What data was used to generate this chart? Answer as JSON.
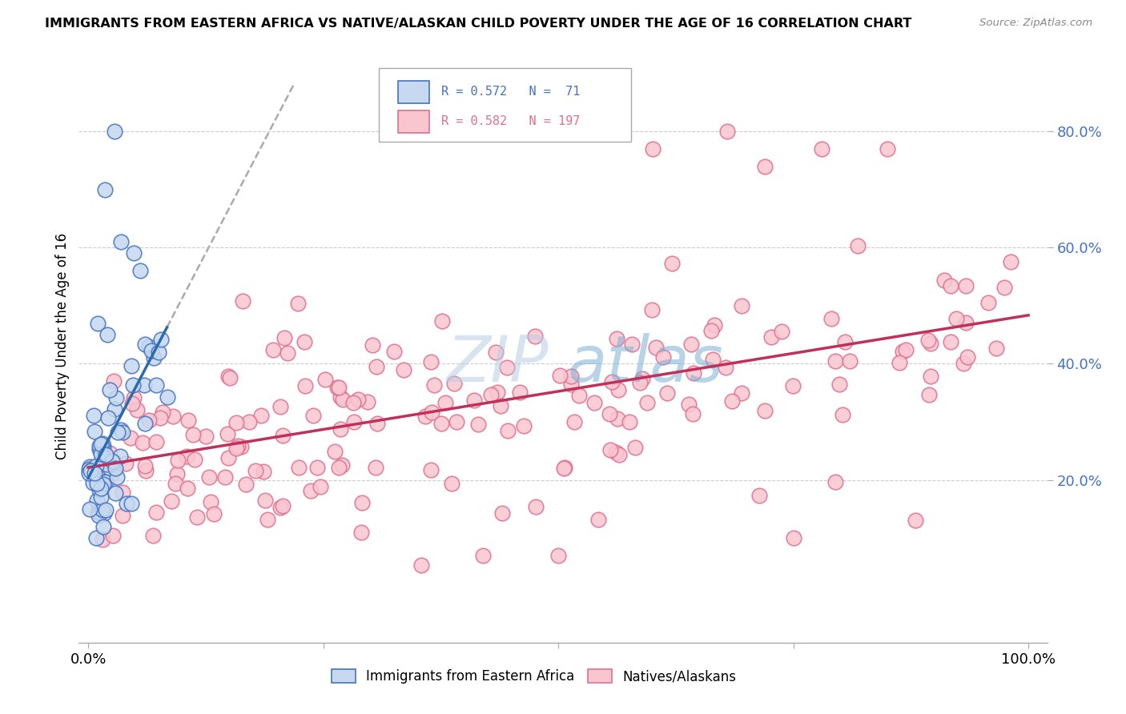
{
  "title": "IMMIGRANTS FROM EASTERN AFRICA VS NATIVE/ALASKAN CHILD POVERTY UNDER THE AGE OF 16 CORRELATION CHART",
  "source": "Source: ZipAtlas.com",
  "ylabel": "Child Poverty Under the Age of 16",
  "watermark_zip": "ZIP",
  "watermark_atlas": "atlas",
  "legend_blue_r": "R = 0.572",
  "legend_blue_n": "N =  71",
  "legend_pink_r": "R = 0.582",
  "legend_pink_n": "N = 197",
  "blue_fill": "#c6d9f0",
  "blue_edge": "#4472c4",
  "pink_fill": "#f9c6d0",
  "pink_edge": "#e07090",
  "blue_line_color": "#2b6cb0",
  "pink_line_color": "#c0305a",
  "tick_label_color": "#4472c4",
  "title_color": "#000000",
  "source_color": "#888888",
  "grid_color": "#cccccc",
  "watermark_zip_color": "#b8cce4",
  "watermark_atlas_color": "#7bafd4"
}
